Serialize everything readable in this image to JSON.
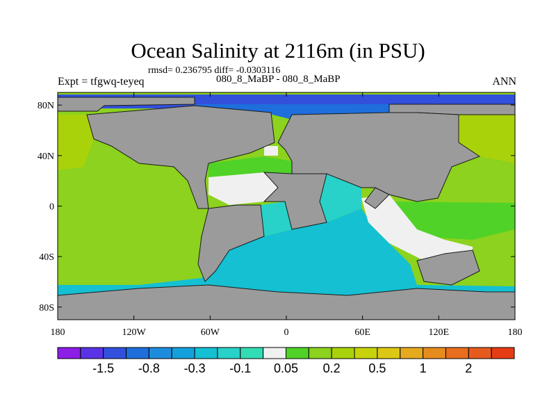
{
  "title": "Ocean Salinity at 2116m (in PSU)",
  "stats_line": "rmsd= 0.236795 diff= -0.0303116",
  "experiment": "Expt = tfgwq-teyeq",
  "cases": "080_8_MaBP - 080_8_MaBP",
  "season": "ANN",
  "map": {
    "projection": "cylindrical-equidistant",
    "lon_range": [
      -180,
      180
    ],
    "lat_range": [
      -90,
      90
    ],
    "lat_ticks": [
      {
        "value": 80,
        "label": "80N"
      },
      {
        "value": 40,
        "label": "40N"
      },
      {
        "value": 0,
        "label": "0"
      },
      {
        "value": -40,
        "label": "40S"
      },
      {
        "value": -80,
        "label": "80S"
      }
    ],
    "lon_ticks": [
      {
        "value": -180,
        "label": "180"
      },
      {
        "value": -120,
        "label": "120W"
      },
      {
        "value": -60,
        "label": "60W"
      },
      {
        "value": 0,
        "label": "0"
      },
      {
        "value": 60,
        "label": "60E"
      },
      {
        "value": 120,
        "label": "120E"
      },
      {
        "value": 180,
        "label": "180"
      }
    ],
    "land_color": "#9b9b9b"
  },
  "colorbar": {
    "colors": [
      "#8c1ee6",
      "#5a32e6",
      "#3250dc",
      "#1e6edc",
      "#1e8cdc",
      "#14a0dc",
      "#14c0d2",
      "#28d2c8",
      "#32dcb4",
      "#f0f0f0",
      "#50d228",
      "#8cd21e",
      "#aad20a",
      "#c8d20a",
      "#dcc814",
      "#e6aa1e",
      "#e68c1e",
      "#e66e1e",
      "#e65a1e",
      "#e63c14"
    ],
    "labels": [
      {
        "after_box": 2,
        "text": "-1.5"
      },
      {
        "after_box": 4,
        "text": "-0.8"
      },
      {
        "after_box": 6,
        "text": "-0.3"
      },
      {
        "after_box": 8,
        "text": "-0.1"
      },
      {
        "after_box": 10,
        "text": "0.05"
      },
      {
        "after_box": 12,
        "text": "0.2"
      },
      {
        "after_box": 14,
        "text": "0.5"
      },
      {
        "after_box": 16,
        "text": "1"
      },
      {
        "after_box": 18,
        "text": "2"
      }
    ]
  }
}
